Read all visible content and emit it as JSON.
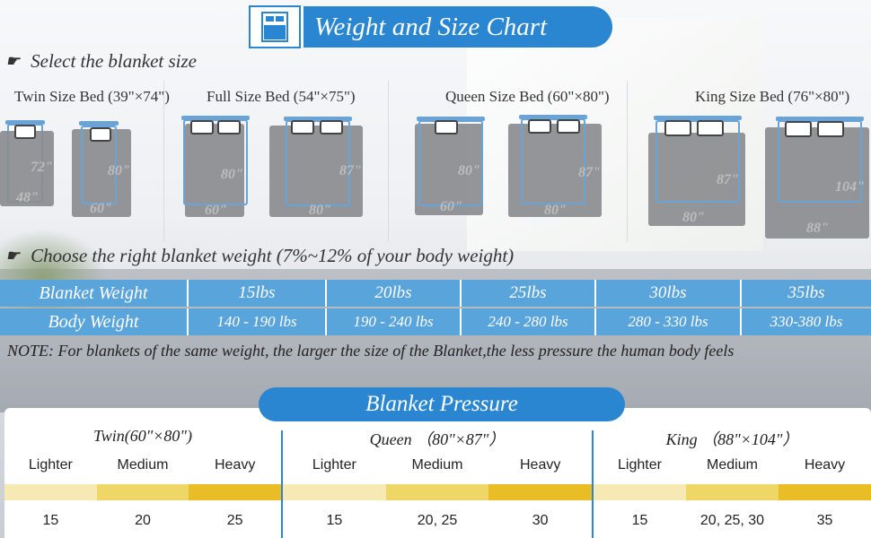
{
  "title": "Weight and Size Chart",
  "select_label": "Select the blanket size",
  "beds": [
    {
      "title": "Twin Size Bed (39\"×74\")",
      "dims": [
        "72\"",
        "48\"",
        "80\"",
        "60\""
      ]
    },
    {
      "title": "Full Size Bed (54\"×75\")",
      "dims": [
        "80\"",
        "60\"",
        "87\"",
        "80\""
      ]
    },
    {
      "title": "Queen Size Bed (60\"×80\")",
      "dims": [
        "80\"",
        "60\"",
        "87\"",
        "80\""
      ]
    },
    {
      "title": "King Size Bed (76\"×80\")",
      "dims": [
        "87\"",
        "80\"",
        "104\"",
        "88\""
      ]
    }
  ],
  "weight_label": "Choose the right blanket weight (7%~12% of your body weight)",
  "weight_table": {
    "row1": [
      "Blanket Weight",
      "15lbs",
      "20lbs",
      "25lbs",
      "30lbs",
      "35lbs"
    ],
    "row2": [
      "Body Weight",
      "140 - 190 lbs",
      "190 - 240 lbs",
      "240 - 280 lbs",
      "280 - 330 lbs",
      "330-380 lbs"
    ]
  },
  "note": "NOTE: For blankets of the same weight, the larger the size of the Blanket,the less pressure the human body feels",
  "pressure_title": "Blanket Pressure",
  "pressure_groups": [
    {
      "title": "Twin(60\"×80\")",
      "levels": [
        "Lighter",
        "Medium",
        "Heavy"
      ],
      "values": [
        "15",
        "20",
        "25"
      ]
    },
    {
      "title": "Queen （80\"×87\"）",
      "levels": [
        "Lighter",
        "Medium",
        "Heavy"
      ],
      "values": [
        "15",
        "20, 25",
        "30"
      ]
    },
    {
      "title": "King （88\"×104\"）",
      "levels": [
        "Lighter",
        "Medium",
        "Heavy"
      ],
      "values": [
        "15",
        "20, 25, 30",
        "35"
      ]
    }
  ],
  "colors": {
    "accent": "#2a86d1",
    "table": "#5aa4dc",
    "light": "#f6e9b3",
    "medium": "#eed667",
    "heavy": "#e8bd25"
  }
}
